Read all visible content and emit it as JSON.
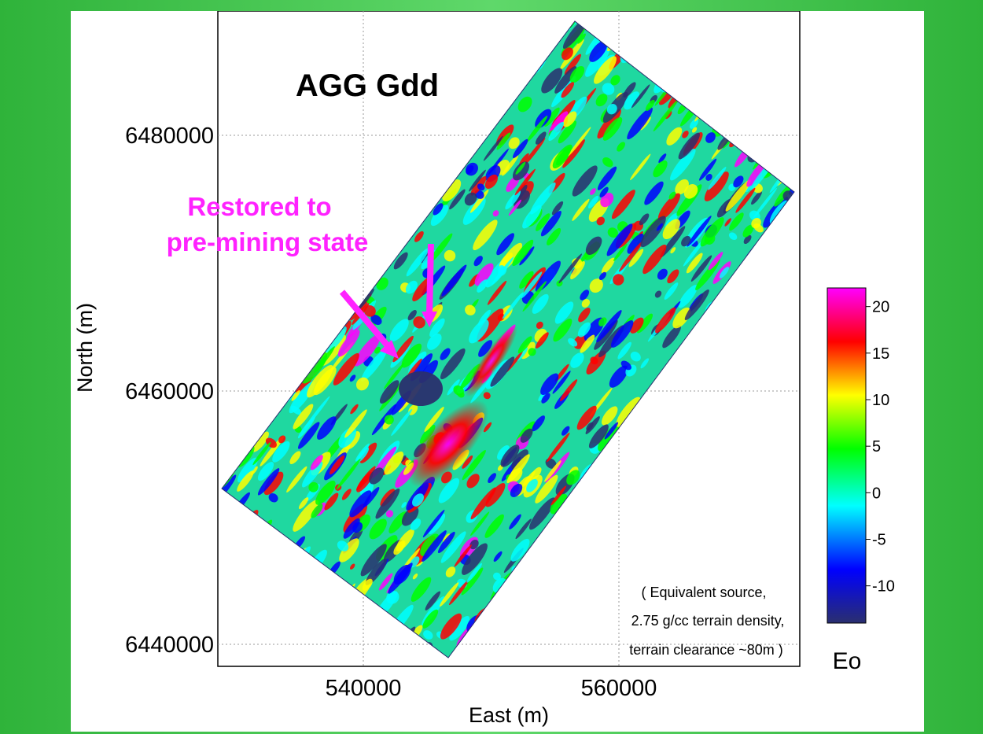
{
  "figure": {
    "title": "AGG Gdd",
    "annotation": [
      "Restored to",
      "pre-mining state"
    ],
    "note": [
      "( Equivalent source,",
      "2.75 g/cc terrain density,",
      "terrain clearance ~80m )"
    ],
    "xlabel": "East (m)",
    "ylabel": "North (m)",
    "x_ticks": [
      "540000",
      "560000"
    ],
    "y_ticks": [
      "6480000",
      "6460000",
      "6440000"
    ],
    "colorbar": {
      "ticks": [
        "20",
        "15",
        "10",
        "5",
        "0",
        "-5",
        "-10"
      ],
      "unit": "Eo",
      "range": [
        -14,
        22
      ],
      "colors": [
        "#2a2f6e",
        "#0000ff",
        "#00ffff",
        "#00ff00",
        "#ffff00",
        "#ff0000",
        "#ff00ff"
      ]
    },
    "annotation_color": "#ff22ff"
  }
}
